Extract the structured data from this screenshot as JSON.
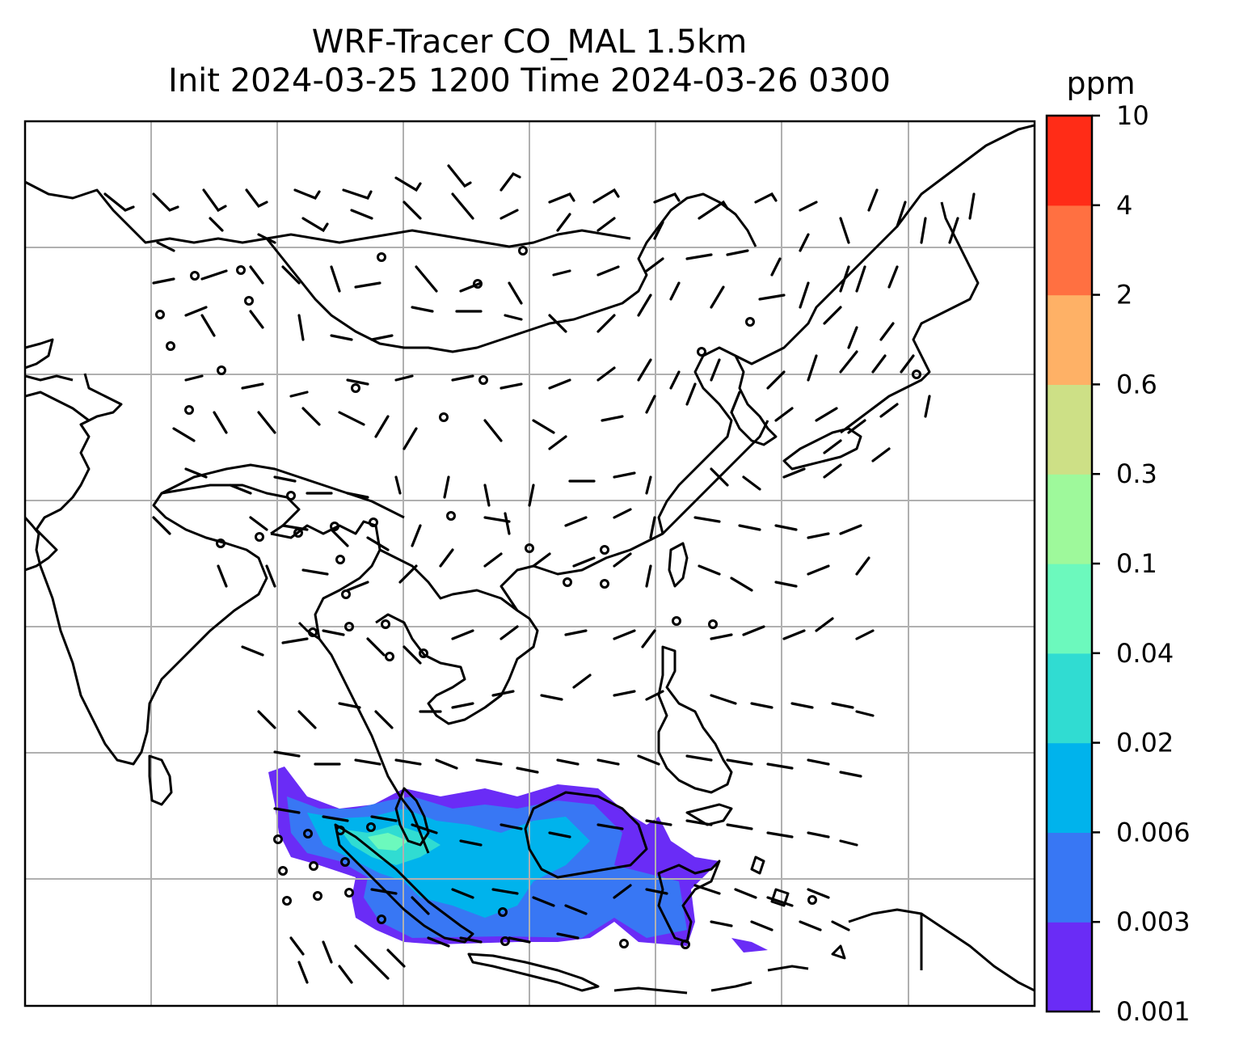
{
  "title": {
    "line1": "WRF-Tracer CO_MAL 1.5km",
    "line2": "Init 2024-03-25 1200 Time 2024-03-26 0300"
  },
  "colorbar": {
    "unit": "ppm",
    "levels": [
      "0.001",
      "0.003",
      "0.006",
      "0.02",
      "0.04",
      "0.1",
      "0.3",
      "0.6",
      "2",
      "4",
      "10"
    ],
    "colors": [
      "#6a2cf6",
      "#3877f4",
      "#00b3ec",
      "#30dcd2",
      "#6cf9bd",
      "#9ef99b",
      "#cde086",
      "#feb166",
      "#ff7041",
      "#ff2c17"
    ]
  },
  "overlay": {
    "plume_colors": [
      "#6a2cf6",
      "#3877f4",
      "#00b3ec",
      "#30dcd2",
      "#6cf9bd"
    ],
    "gridline_color": "#b0b0b0",
    "coast_color": "#000000"
  }
}
